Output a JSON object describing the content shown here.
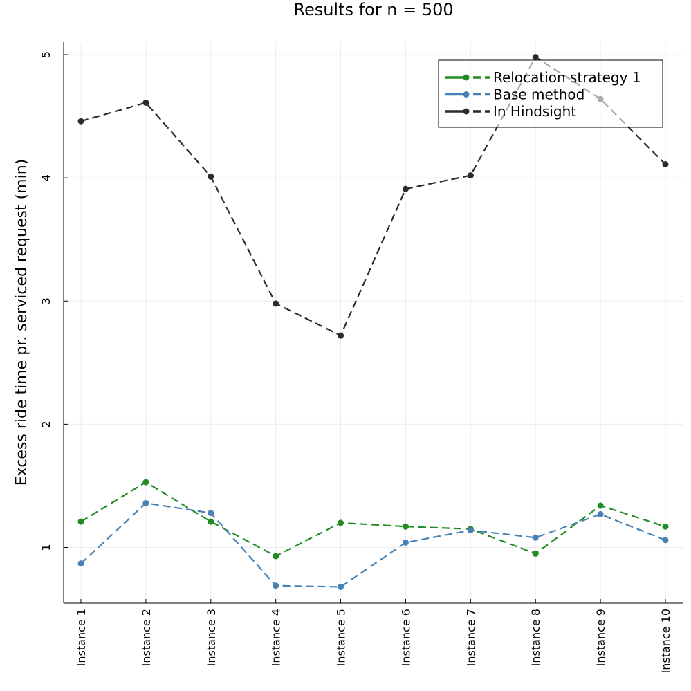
{
  "chart_data": {
    "type": "line",
    "title": "Results for n = 500",
    "xlabel": "",
    "ylabel": "Excess ride time pr. serviced request (min)",
    "categories": [
      "Instance 1",
      "Instance 2",
      "Instance 3",
      "Instance 4",
      "Instance 5",
      "Instance 6",
      "Instance 7",
      "Instance 8",
      "Instance 9",
      "Instance 10"
    ],
    "yticks": [
      1,
      2,
      3,
      4,
      5
    ],
    "ylim": [
      0.55,
      5.12
    ],
    "grid": true,
    "legend_position": "top-right",
    "series": [
      {
        "name": "Relocation strategy 1",
        "color": "#228b22",
        "values": [
          1.21,
          1.53,
          1.21,
          0.93,
          1.2,
          1.17,
          1.15,
          0.95,
          1.34,
          1.17
        ]
      },
      {
        "name": "Base method",
        "color": "#4682b4",
        "values": [
          0.87,
          1.36,
          1.28,
          0.69,
          0.68,
          1.04,
          1.14,
          1.08,
          1.27,
          1.06
        ]
      },
      {
        "name": "In Hindsight",
        "color": "#2b2b2b",
        "values": [
          4.46,
          4.61,
          4.01,
          2.98,
          2.72,
          3.91,
          4.02,
          4.98,
          4.64,
          4.11
        ]
      }
    ]
  }
}
